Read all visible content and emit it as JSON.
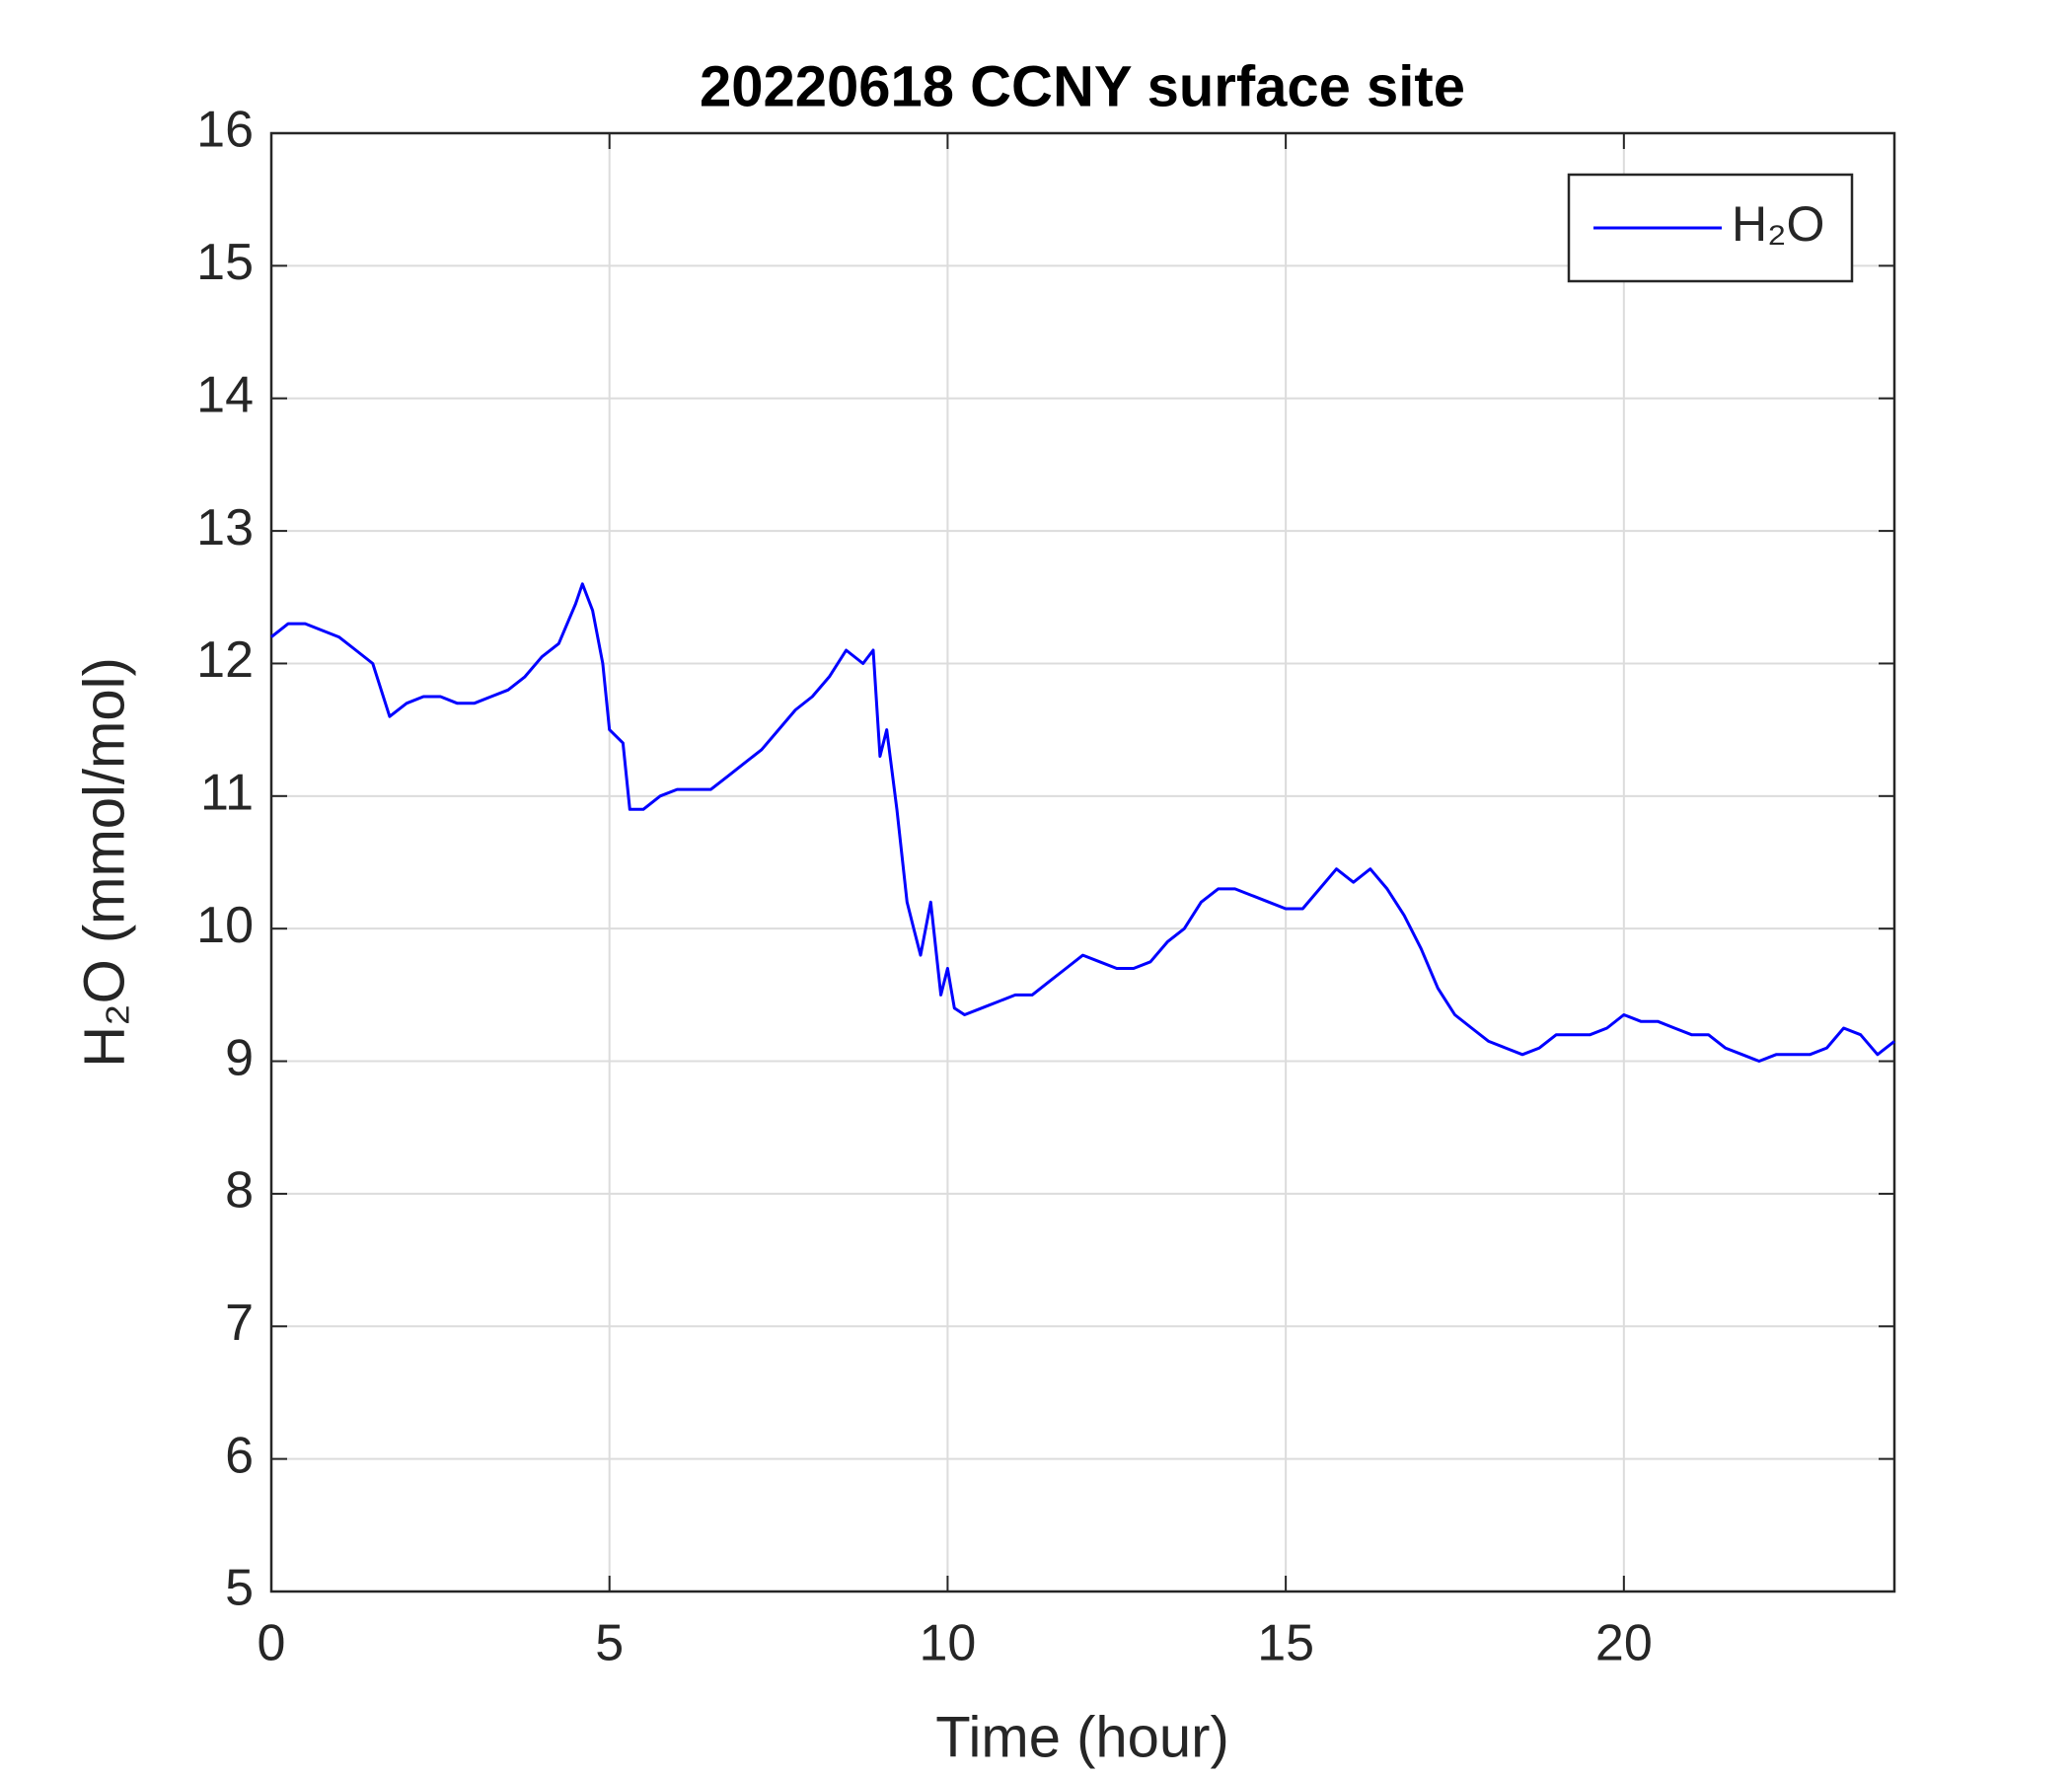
{
  "chart_data": {
    "type": "line",
    "title": "20220618 CCNY surface site",
    "x_label": "Time (hour)",
    "y_label": "H₂O (mmol/mol)",
    "xlim": [
      0,
      24
    ],
    "xticks": [
      0,
      5,
      10,
      15,
      20
    ],
    "ylim": [
      5,
      16
    ],
    "yticks": [
      5,
      6,
      7,
      8,
      9,
      10,
      11,
      12,
      13,
      14,
      15,
      16
    ],
    "grid": true,
    "legend": "upper right",
    "x": [
      0,
      0.25,
      0.5,
      0.75,
      1.0,
      1.25,
      1.5,
      1.75,
      2.0,
      2.25,
      2.5,
      2.75,
      3.0,
      3.25,
      3.5,
      3.75,
      4.0,
      4.25,
      4.5,
      4.6,
      4.75,
      4.9,
      5.0,
      5.2,
      5.3,
      5.5,
      5.75,
      6.0,
      6.25,
      6.5,
      6.75,
      7.0,
      7.25,
      7.5,
      7.75,
      8.0,
      8.25,
      8.5,
      8.75,
      8.9,
      9.0,
      9.1,
      9.25,
      9.4,
      9.5,
      9.6,
      9.75,
      9.9,
      10.0,
      10.1,
      10.25,
      10.5,
      10.75,
      11.0,
      11.25,
      11.5,
      11.75,
      12.0,
      12.25,
      12.5,
      12.75,
      13.0,
      13.25,
      13.5,
      13.75,
      14.0,
      14.25,
      14.5,
      14.75,
      15.0,
      15.25,
      15.5,
      15.75,
      16.0,
      16.25,
      16.5,
      16.75,
      17.0,
      17.25,
      17.5,
      17.75,
      18.0,
      18.25,
      18.5,
      18.75,
      19.0,
      19.25,
      19.5,
      19.75,
      20.0,
      20.25,
      20.5,
      20.75,
      21.0,
      21.25,
      21.5,
      21.75,
      22.0,
      22.25,
      22.5,
      22.75,
      23.0,
      23.25,
      23.5,
      23.75,
      24.0
    ],
    "series": [
      {
        "name": "H₂O",
        "color": "#0000ff",
        "values": [
          12.2,
          12.3,
          12.3,
          12.25,
          12.2,
          12.1,
          12.0,
          11.6,
          11.7,
          11.75,
          11.75,
          11.7,
          11.7,
          11.75,
          11.8,
          11.9,
          12.05,
          12.15,
          12.45,
          12.6,
          12.4,
          12.0,
          11.5,
          11.4,
          10.9,
          10.9,
          11.0,
          11.05,
          11.05,
          11.05,
          11.15,
          11.25,
          11.35,
          11.5,
          11.65,
          11.75,
          11.9,
          12.1,
          12.0,
          12.1,
          11.3,
          11.5,
          10.9,
          10.2,
          10.0,
          9.8,
          10.2,
          9.5,
          9.7,
          9.4,
          9.35,
          9.4,
          9.45,
          9.5,
          9.5,
          9.6,
          9.7,
          9.8,
          9.75,
          9.7,
          9.7,
          9.75,
          9.9,
          10.0,
          10.2,
          10.3,
          10.3,
          10.25,
          10.2,
          10.15,
          10.15,
          10.3,
          10.45,
          10.35,
          10.45,
          10.3,
          10.1,
          9.85,
          9.55,
          9.35,
          9.25,
          9.15,
          9.1,
          9.05,
          9.1,
          9.2,
          9.2,
          9.2,
          9.25,
          9.35,
          9.3,
          9.3,
          9.25,
          9.2,
          9.2,
          9.1,
          9.05,
          9.0,
          9.05,
          9.05,
          9.05,
          9.1,
          9.25,
          9.2,
          9.05,
          9.15
        ]
      }
    ]
  }
}
